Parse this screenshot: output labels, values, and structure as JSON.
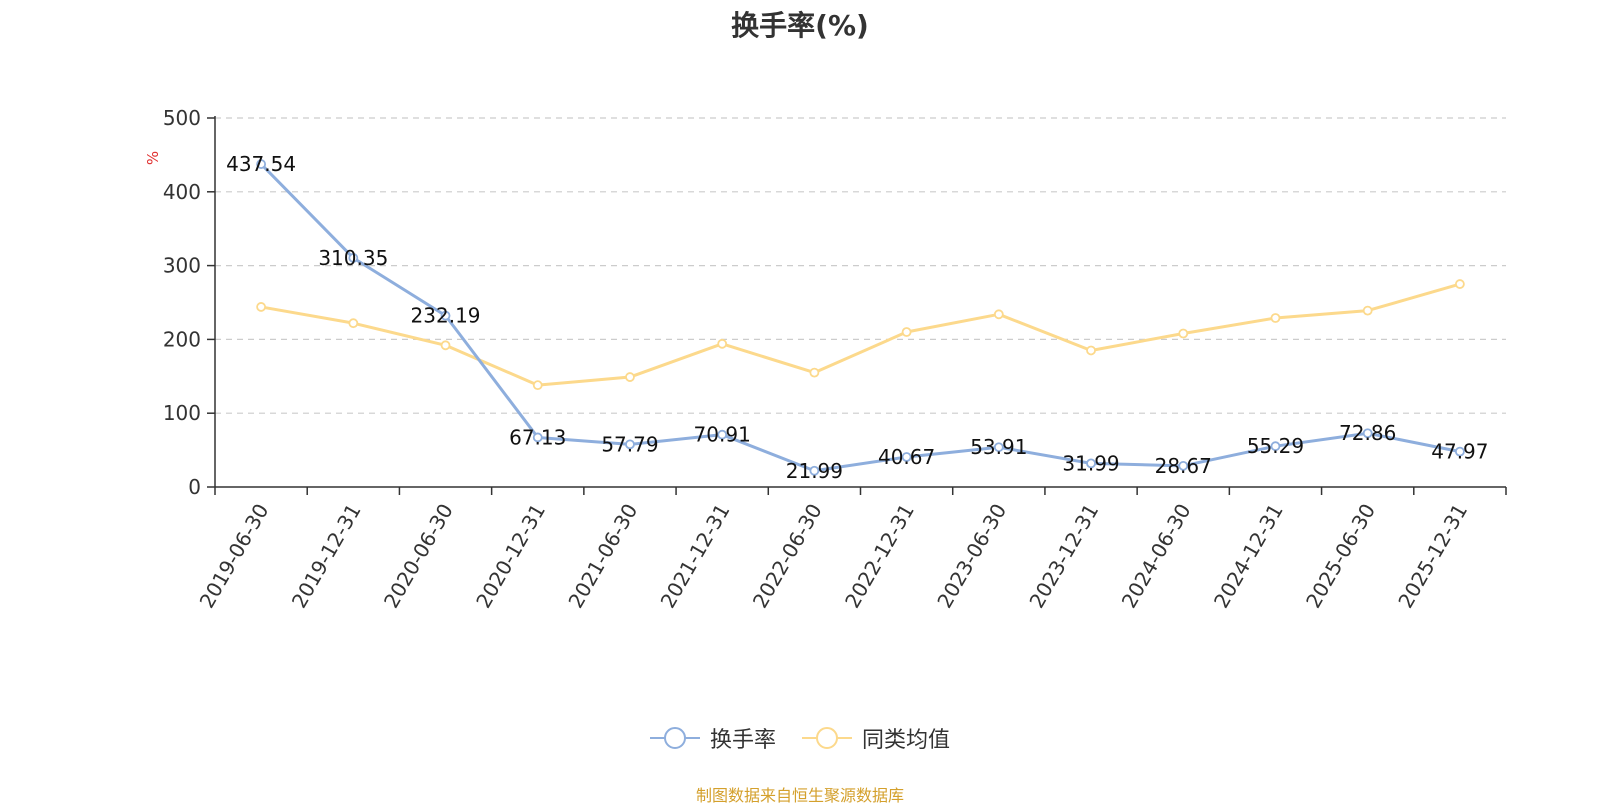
{
  "chart_data": {
    "type": "line",
    "title": "换手率(%)",
    "ylabel": "%",
    "ylim": [
      0,
      500
    ],
    "yticks": [
      0,
      100,
      200,
      300,
      400,
      500
    ],
    "categories": [
      "2019-06-30",
      "2019-12-31",
      "2020-06-30",
      "2020-12-31",
      "2021-06-30",
      "2021-12-31",
      "2022-06-30",
      "2022-12-31",
      "2023-06-30",
      "2023-12-31",
      "2024-06-30",
      "2024-12-31",
      "2025-06-30",
      "2025-12-31"
    ],
    "series": [
      {
        "name": "换手率",
        "color": "#8eaedd",
        "values": [
          437.54,
          310.35,
          232.19,
          67.13,
          57.79,
          70.91,
          21.99,
          40.67,
          53.91,
          31.99,
          28.67,
          55.29,
          72.86,
          47.97
        ],
        "labels": [
          "437.54",
          "310.35",
          "232.19",
          "67.13",
          "57.79",
          "70.91",
          "21.99",
          "40.67",
          "53.91",
          "31.99",
          "28.67",
          "55.29",
          "72.86",
          "47.97"
        ]
      },
      {
        "name": "同类均值",
        "color": "#fcd98c",
        "values": [
          244,
          222,
          192,
          138,
          149,
          194,
          155,
          210,
          234,
          185,
          208,
          229,
          239,
          275
        ]
      }
    ],
    "grid": true,
    "legend_position": "bottom"
  },
  "colors": {
    "axis": "#333333",
    "grid": "#cccccc",
    "unit": "#e03030",
    "source": "#d4a02c"
  },
  "source_note": "制图数据来自恒生聚源数据库"
}
